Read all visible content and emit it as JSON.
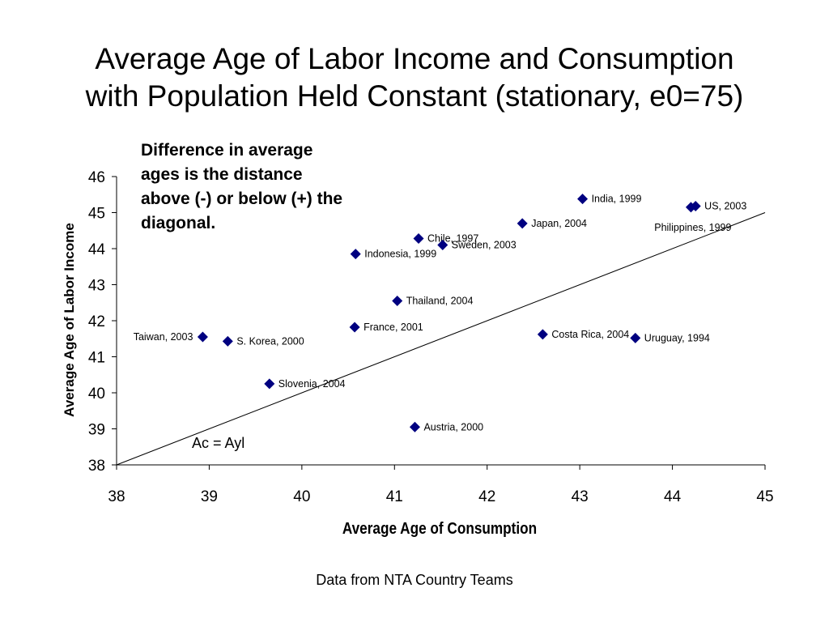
{
  "slide": {
    "title_line1": "Average Age of Labor Income and Consumption",
    "title_line2": "with Population Held Constant (stationary, e0=75)",
    "annotation_line1": "Difference in average",
    "annotation_line2": "ages is the distance",
    "annotation_line3": "above (-) or below (+) the",
    "annotation_line4": "diagonal.",
    "source": "Data from NTA Country Teams"
  },
  "chart_data": {
    "type": "scatter",
    "xlabel": "Average Age of Consumption",
    "ylabel": "Average Age of Labor Income",
    "xlim": [
      38,
      45
    ],
    "ylim": [
      38,
      46
    ],
    "xticks": [
      38,
      39,
      40,
      41,
      42,
      43,
      44,
      45
    ],
    "yticks": [
      38,
      39,
      40,
      41,
      42,
      43,
      44,
      45,
      46
    ],
    "grid": false,
    "marker_color": "#000080",
    "reference_line": {
      "label": "Ac = Ayl",
      "from": [
        38,
        38
      ],
      "to": [
        45,
        45
      ]
    },
    "points": [
      {
        "label": "India, 1999",
        "x": 43.03,
        "y": 45.38,
        "label_side": "right"
      },
      {
        "label": "US, 2003",
        "x": 44.25,
        "y": 45.18,
        "label_side": "right"
      },
      {
        "label": "Philippines, 1999",
        "x": 44.2,
        "y": 45.15,
        "label_side": "below-left"
      },
      {
        "label": "Japan, 2004",
        "x": 42.38,
        "y": 44.7,
        "label_side": "right"
      },
      {
        "label": "Chile, 1997",
        "x": 41.26,
        "y": 44.28,
        "label_side": "right"
      },
      {
        "label": "Sweden, 2003",
        "x": 41.52,
        "y": 44.1,
        "label_side": "right"
      },
      {
        "label": "Indonesia, 1999",
        "x": 40.58,
        "y": 43.85,
        "label_side": "right"
      },
      {
        "label": "Thailand, 2004",
        "x": 41.03,
        "y": 42.55,
        "label_side": "right"
      },
      {
        "label": "France, 2001",
        "x": 40.57,
        "y": 41.82,
        "label_side": "right"
      },
      {
        "label": "Costa Rica, 2004",
        "x": 42.6,
        "y": 41.62,
        "label_side": "right"
      },
      {
        "label": "Uruguay, 1994",
        "x": 43.6,
        "y": 41.52,
        "label_side": "right"
      },
      {
        "label": "Taiwan, 2003",
        "x": 38.93,
        "y": 41.55,
        "label_side": "left"
      },
      {
        "label": "S. Korea, 2000",
        "x": 39.2,
        "y": 41.43,
        "label_side": "right"
      },
      {
        "label": "Slovenia, 2004",
        "x": 39.65,
        "y": 40.25,
        "label_side": "right"
      },
      {
        "label": "Austria, 2000",
        "x": 41.22,
        "y": 39.05,
        "label_side": "right"
      }
    ]
  }
}
